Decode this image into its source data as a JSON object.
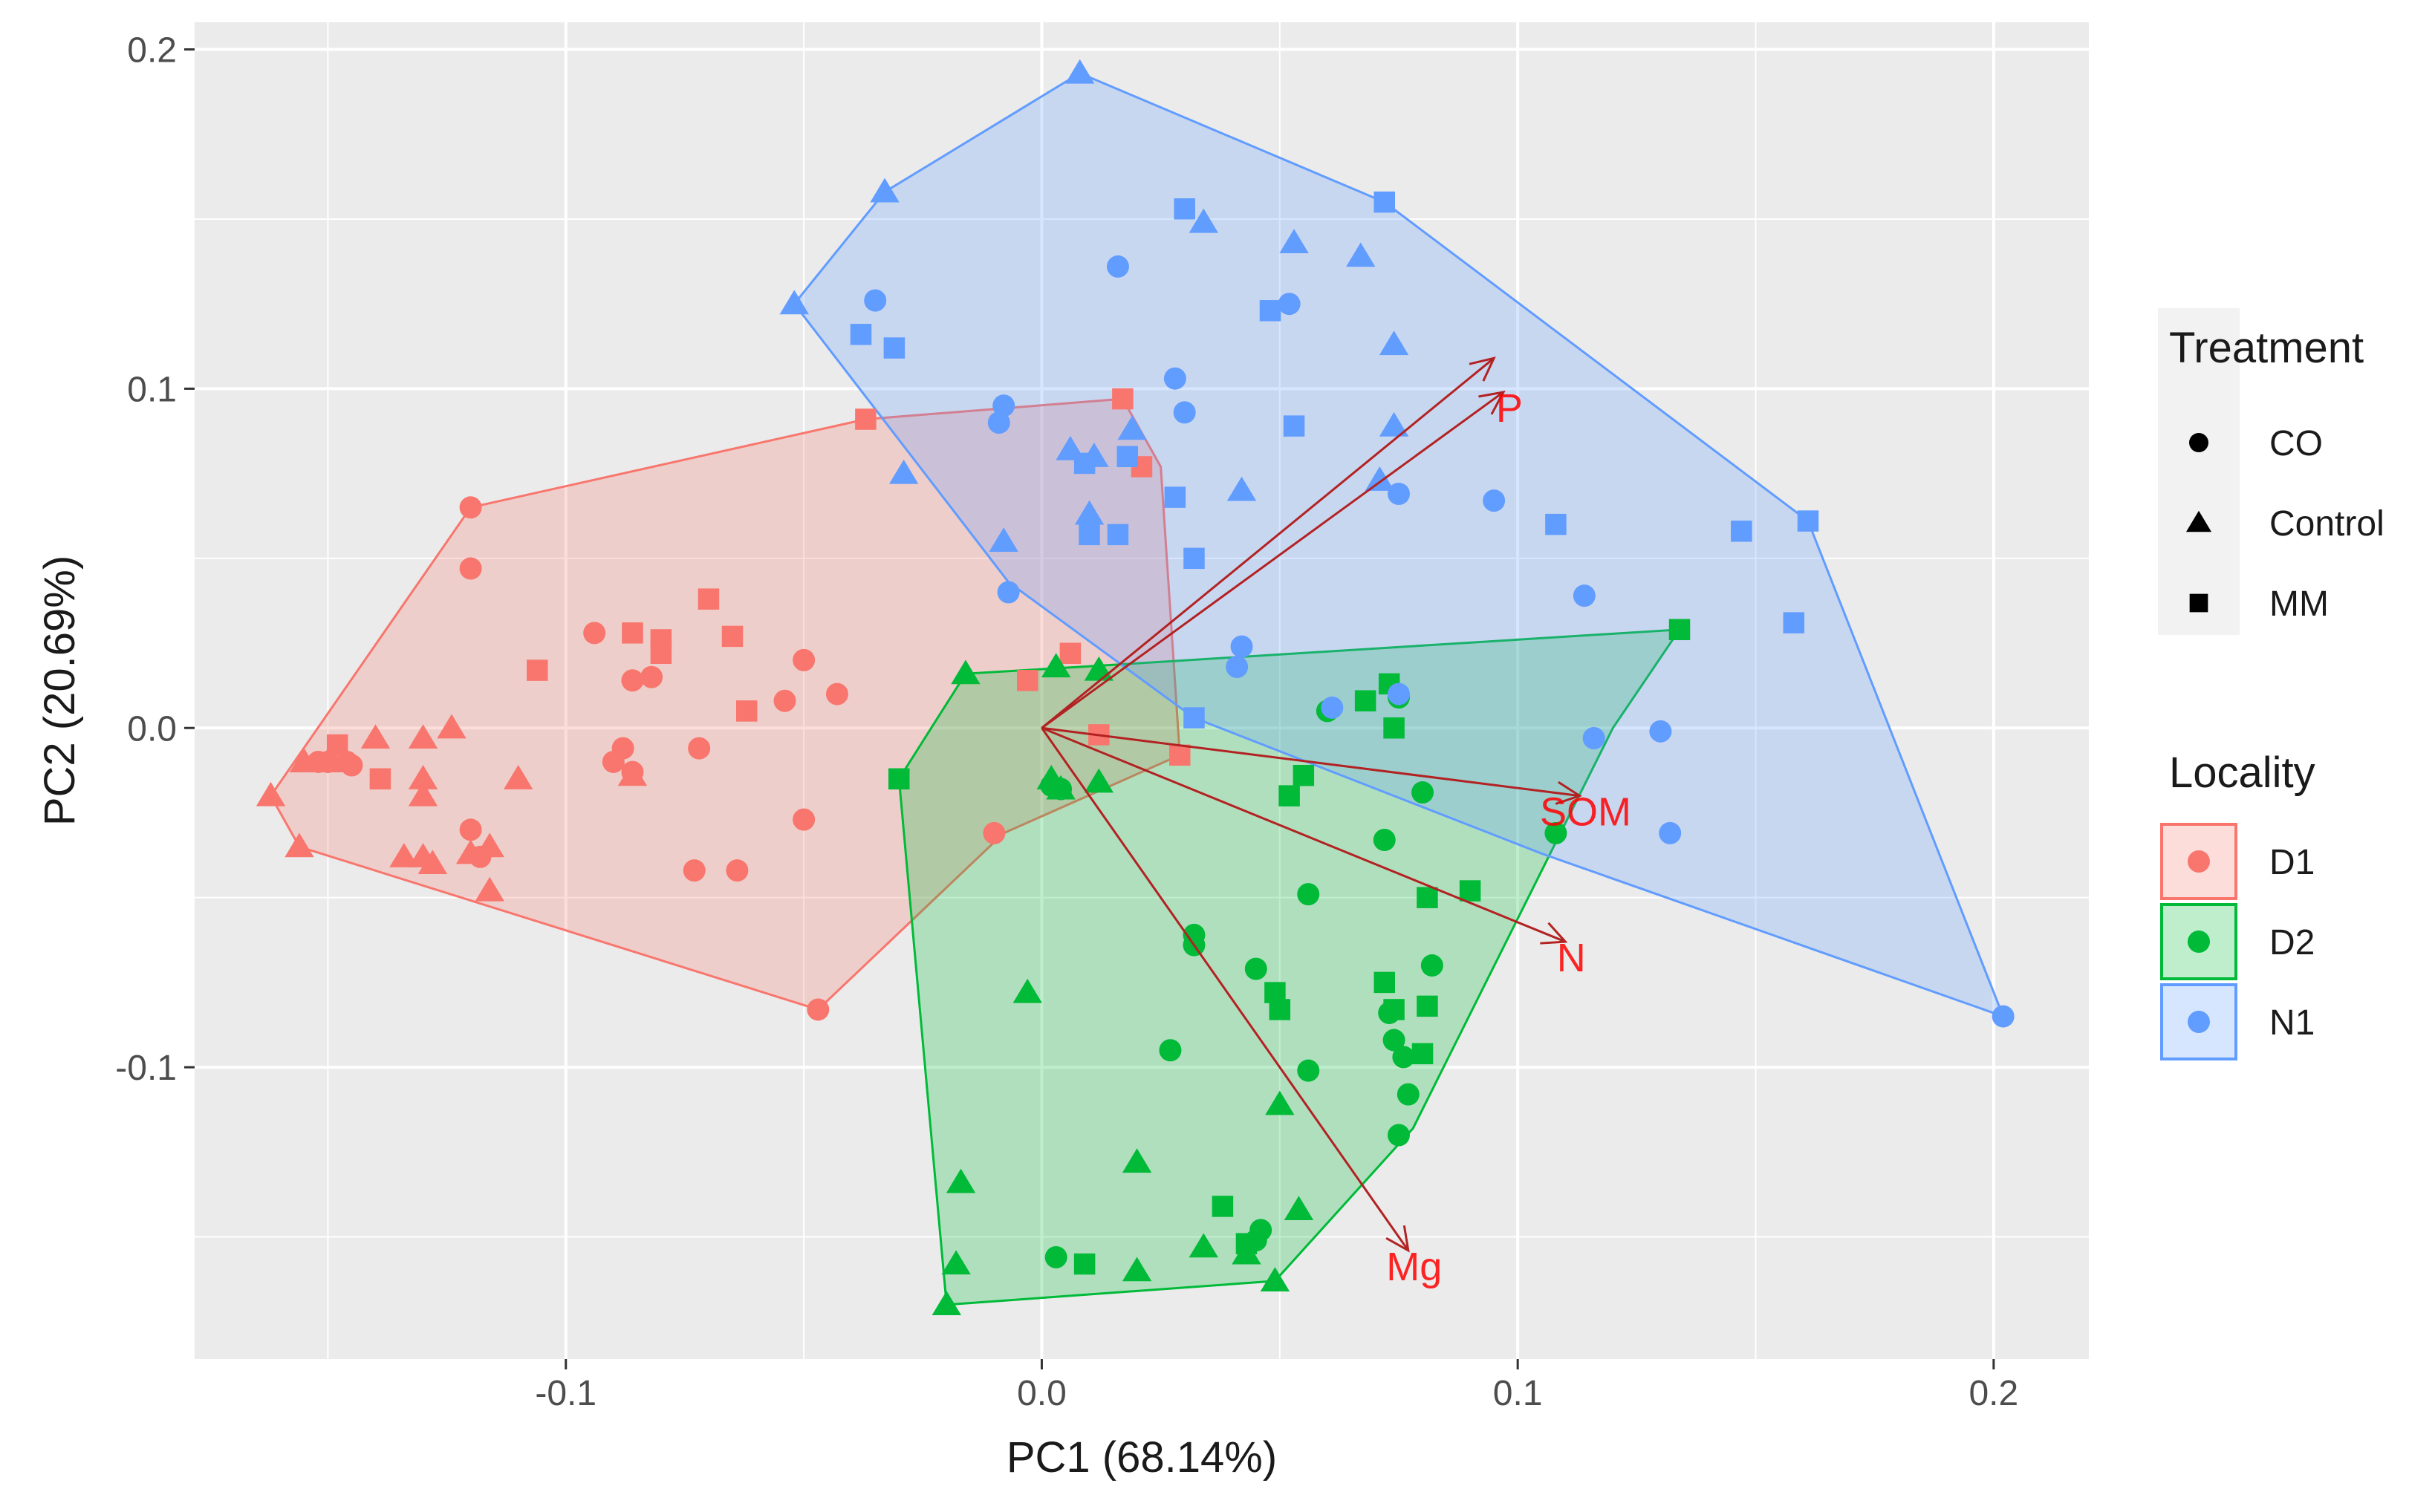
{
  "chart_data": {
    "type": "scatter",
    "title": "",
    "xlabel": "PC1 (68.14%)",
    "ylabel": "PC2 (20.69%)",
    "xlim": [
      -0.178,
      0.22
    ],
    "ylim": [
      -0.186,
      0.208
    ],
    "x_ticks": [
      -0.1,
      0.0,
      0.1,
      0.2
    ],
    "x_tick_labels": [
      "-0.1",
      "0.0",
      "0.1",
      "0.2"
    ],
    "y_ticks": [
      -0.1,
      0.0,
      0.1,
      0.2
    ],
    "y_tick_labels": [
      "-0.1",
      "0.0",
      "0.1",
      "0.2"
    ],
    "grid": true,
    "colors": {
      "D1": "#F8766D",
      "D2": "#00BA38",
      "N1": "#619CFF",
      "arrow": "#B22222",
      "label": "#FF0000"
    },
    "legend": {
      "position": "right",
      "treatment_title": "Treatment",
      "treatment": [
        {
          "key": "CO",
          "label": "CO",
          "shape": "circle"
        },
        {
          "key": "Control",
          "label": "Control",
          "shape": "triangle"
        },
        {
          "key": "MM",
          "label": "MM",
          "shape": "square"
        }
      ],
      "locality_title": "Locality",
      "locality": [
        {
          "key": "D1",
          "label": "D1"
        },
        {
          "key": "D2",
          "label": "D2"
        },
        {
          "key": "N1",
          "label": "N1"
        }
      ]
    },
    "hulls": {
      "D1": [
        [
          -0.162,
          -0.02
        ],
        [
          -0.156,
          -0.035
        ],
        [
          -0.047,
          -0.083
        ],
        [
          -0.008,
          -0.031
        ],
        [
          0.029,
          -0.008
        ],
        [
          0.025,
          0.077
        ],
        [
          0.017,
          0.097
        ],
        [
          -0.037,
          0.091
        ],
        [
          -0.12,
          0.065
        ]
      ],
      "D2": [
        [
          -0.03,
          -0.015
        ],
        [
          -0.016,
          0.016
        ],
        [
          0.008,
          0.018
        ],
        [
          0.134,
          0.029
        ],
        [
          0.12,
          0.0
        ],
        [
          0.078,
          -0.118
        ],
        [
          0.049,
          -0.163
        ],
        [
          -0.02,
          -0.17
        ]
      ],
      "N1": [
        [
          -0.052,
          0.125
        ],
        [
          -0.033,
          0.158
        ],
        [
          0.008,
          0.193
        ],
        [
          0.072,
          0.155
        ],
        [
          0.161,
          0.061
        ],
        [
          0.202,
          -0.085
        ],
        [
          0.105,
          -0.037
        ],
        [
          0.032,
          0.003
        ],
        [
          -0.007,
          0.043
        ]
      ]
    },
    "loadings": [
      {
        "label": "P",
        "x": 0.097,
        "y": 0.099
      },
      {
        "label": "",
        "x": 0.095,
        "y": 0.109
      },
      {
        "label": "SOM",
        "x": 0.113,
        "y": -0.02
      },
      {
        "label": "N",
        "x": 0.11,
        "y": -0.063
      },
      {
        "label": "Mg",
        "x": 0.077,
        "y": -0.154
      }
    ],
    "series": [
      {
        "name": "D1",
        "treatment": "CO",
        "points": [
          [
            -0.12,
            0.047
          ],
          [
            -0.094,
            0.028
          ],
          [
            -0.086,
            0.014
          ],
          [
            -0.082,
            0.015
          ],
          [
            -0.05,
            0.02
          ],
          [
            -0.054,
            0.008
          ],
          [
            -0.043,
            0.01
          ],
          [
            -0.072,
            -0.006
          ],
          [
            -0.09,
            -0.01
          ],
          [
            -0.088,
            -0.006
          ],
          [
            -0.086,
            -0.013
          ],
          [
            -0.12,
            -0.03
          ],
          [
            -0.118,
            -0.038
          ],
          [
            -0.064,
            -0.042
          ],
          [
            -0.073,
            -0.042
          ],
          [
            -0.05,
            -0.027
          ],
          [
            -0.01,
            -0.031
          ],
          [
            -0.146,
            -0.01
          ],
          [
            -0.15,
            -0.01
          ],
          [
            -0.152,
            -0.01
          ],
          [
            -0.145,
            -0.011
          ],
          [
            -0.047,
            -0.083
          ],
          [
            -0.12,
            0.065
          ]
        ]
      },
      {
        "name": "D1",
        "treatment": "Control",
        "points": [
          [
            -0.162,
            -0.02
          ],
          [
            -0.156,
            -0.035
          ],
          [
            -0.155,
            -0.01
          ],
          [
            -0.15,
            -0.01
          ],
          [
            -0.14,
            -0.003
          ],
          [
            -0.13,
            -0.003
          ],
          [
            -0.124,
            0.0
          ],
          [
            -0.13,
            -0.015
          ],
          [
            -0.13,
            -0.02
          ],
          [
            -0.134,
            -0.038
          ],
          [
            -0.13,
            -0.038
          ],
          [
            -0.128,
            -0.04
          ],
          [
            -0.12,
            -0.037
          ],
          [
            -0.116,
            -0.035
          ],
          [
            -0.116,
            -0.048
          ],
          [
            -0.11,
            -0.015
          ],
          [
            -0.086,
            -0.014
          ]
        ]
      },
      {
        "name": "D1",
        "treatment": "MM",
        "points": [
          [
            -0.106,
            0.017
          ],
          [
            -0.086,
            0.028
          ],
          [
            -0.08,
            0.026
          ],
          [
            -0.08,
            0.022
          ],
          [
            -0.07,
            0.038
          ],
          [
            -0.065,
            0.027
          ],
          [
            -0.062,
            0.005
          ],
          [
            -0.139,
            -0.015
          ],
          [
            -0.148,
            -0.005
          ],
          [
            -0.037,
            0.091
          ],
          [
            0.017,
            0.097
          ],
          [
            0.021,
            0.077
          ],
          [
            -0.003,
            0.014
          ],
          [
            0.006,
            0.022
          ],
          [
            0.012,
            -0.002
          ],
          [
            0.029,
            -0.008
          ]
        ]
      },
      {
        "name": "D2",
        "treatment": "CO",
        "points": [
          [
            0.002,
            -0.017
          ],
          [
            0.004,
            -0.018
          ],
          [
            0.032,
            -0.064
          ],
          [
            0.032,
            -0.061
          ],
          [
            0.045,
            -0.071
          ],
          [
            0.027,
            -0.095
          ],
          [
            0.056,
            -0.049
          ],
          [
            0.056,
            -0.101
          ],
          [
            0.073,
            -0.084
          ],
          [
            0.074,
            -0.092
          ],
          [
            0.076,
            -0.097
          ],
          [
            0.077,
            -0.108
          ],
          [
            0.075,
            -0.12
          ],
          [
            0.072,
            -0.033
          ],
          [
            0.08,
            -0.019
          ],
          [
            0.06,
            0.005
          ],
          [
            0.075,
            0.009
          ],
          [
            0.082,
            -0.07
          ],
          [
            0.108,
            -0.031
          ],
          [
            0.045,
            -0.151
          ],
          [
            0.046,
            -0.148
          ],
          [
            0.003,
            -0.156
          ]
        ]
      },
      {
        "name": "D2",
        "treatment": "Control",
        "points": [
          [
            -0.016,
            0.016
          ],
          [
            0.003,
            0.018
          ],
          [
            0.012,
            0.017
          ],
          [
            0.002,
            -0.015
          ],
          [
            0.004,
            -0.018
          ],
          [
            0.012,
            -0.016
          ],
          [
            -0.003,
            -0.078
          ],
          [
            0.05,
            -0.111
          ],
          [
            0.02,
            -0.128
          ],
          [
            -0.017,
            -0.134
          ],
          [
            -0.018,
            -0.158
          ],
          [
            -0.02,
            -0.17
          ],
          [
            0.02,
            -0.16
          ],
          [
            0.034,
            -0.153
          ],
          [
            0.049,
            -0.163
          ],
          [
            0.043,
            -0.155
          ],
          [
            0.054,
            -0.142
          ]
        ]
      },
      {
        "name": "D2",
        "treatment": "MM",
        "points": [
          [
            -0.03,
            -0.015
          ],
          [
            0.055,
            -0.014
          ],
          [
            0.052,
            -0.02
          ],
          [
            0.068,
            0.008
          ],
          [
            0.073,
            0.013
          ],
          [
            0.074,
            0.0
          ],
          [
            0.081,
            -0.05
          ],
          [
            0.09,
            -0.048
          ],
          [
            0.049,
            -0.078
          ],
          [
            0.05,
            -0.083
          ],
          [
            0.072,
            -0.075
          ],
          [
            0.074,
            -0.083
          ],
          [
            0.081,
            -0.082
          ],
          [
            0.08,
            -0.096
          ],
          [
            0.038,
            -0.141
          ],
          [
            0.043,
            -0.152
          ],
          [
            0.009,
            -0.158
          ],
          [
            0.134,
            0.029
          ]
        ]
      },
      {
        "name": "N1",
        "treatment": "CO",
        "points": [
          [
            -0.035,
            0.126
          ],
          [
            0.016,
            0.136
          ],
          [
            0.052,
            0.125
          ],
          [
            0.028,
            0.103
          ],
          [
            0.03,
            0.093
          ],
          [
            -0.008,
            0.095
          ],
          [
            -0.009,
            0.09
          ],
          [
            0.075,
            0.069
          ],
          [
            0.095,
            0.067
          ],
          [
            0.042,
            0.024
          ],
          [
            0.041,
            0.018
          ],
          [
            0.061,
            0.006
          ],
          [
            0.075,
            0.01
          ],
          [
            0.114,
            0.039
          ],
          [
            0.116,
            -0.003
          ],
          [
            0.13,
            -0.001
          ],
          [
            0.132,
            -0.031
          ],
          [
            -0.007,
            0.04
          ],
          [
            0.202,
            -0.085
          ]
        ]
      },
      {
        "name": "N1",
        "treatment": "Control",
        "points": [
          [
            -0.052,
            0.125
          ],
          [
            -0.033,
            0.158
          ],
          [
            0.008,
            0.193
          ],
          [
            0.034,
            0.149
          ],
          [
            0.053,
            0.143
          ],
          [
            0.067,
            0.139
          ],
          [
            0.074,
            0.113
          ],
          [
            0.019,
            0.088
          ],
          [
            0.074,
            0.089
          ],
          [
            -0.008,
            0.055
          ],
          [
            0.006,
            0.082
          ],
          [
            0.011,
            0.08
          ],
          [
            0.01,
            0.063
          ],
          [
            -0.029,
            0.075
          ],
          [
            0.042,
            0.07
          ],
          [
            0.071,
            0.073
          ]
        ]
      },
      {
        "name": "N1",
        "treatment": "MM",
        "points": [
          [
            0.03,
            0.153
          ],
          [
            0.048,
            0.123
          ],
          [
            -0.038,
            0.116
          ],
          [
            -0.031,
            0.112
          ],
          [
            0.072,
            0.155
          ],
          [
            0.053,
            0.089
          ],
          [
            0.009,
            0.078
          ],
          [
            0.018,
            0.08
          ],
          [
            0.01,
            0.057
          ],
          [
            0.016,
            0.057
          ],
          [
            0.028,
            0.068
          ],
          [
            0.032,
            0.05
          ],
          [
            0.108,
            0.06
          ],
          [
            0.147,
            0.058
          ],
          [
            0.161,
            0.061
          ],
          [
            0.158,
            0.031
          ],
          [
            0.032,
            0.003
          ]
        ]
      }
    ]
  }
}
